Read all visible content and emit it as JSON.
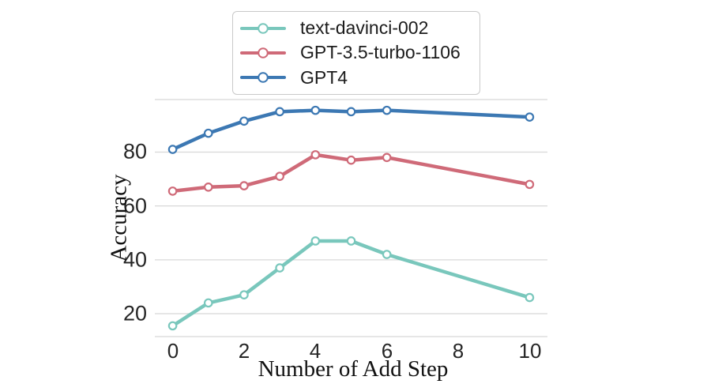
{
  "chart_data": {
    "type": "line",
    "title": "",
    "xlabel": "Number of Add Step",
    "ylabel": "Accuracy",
    "x": [
      0,
      1,
      2,
      3,
      4,
      5,
      6,
      10
    ],
    "series": [
      {
        "name": "text-davinci-002",
        "color": "#79c7bc",
        "values": [
          15.5,
          24,
          27,
          37,
          47,
          47,
          42,
          26
        ]
      },
      {
        "name": "GPT-3.5-turbo-1106",
        "color": "#cf6a78",
        "values": [
          65.5,
          67,
          67.5,
          71,
          79,
          77,
          78,
          68
        ]
      },
      {
        "name": "GPT4",
        "color": "#3c78b3",
        "values": [
          81,
          87,
          91.5,
          95,
          95.5,
          95,
          95.5,
          93
        ]
      }
    ],
    "xlim": [
      -0.5,
      10.5
    ],
    "ylim": [
      11.5,
      99.5
    ],
    "xticks": {
      "values": [
        0,
        2,
        4,
        6,
        8,
        10
      ],
      "labels": [
        "0",
        "2",
        "4",
        "6",
        "8",
        "10"
      ]
    },
    "yticks": {
      "values": [
        20,
        40,
        60,
        80
      ],
      "labels": [
        "20",
        "40",
        "60",
        "80"
      ]
    },
    "grid": "horizontal",
    "grid_color": "#d8d8d8",
    "marker": "circle-open",
    "legend": {
      "position": "upper center",
      "border_color": "#c9c9c9",
      "background": "#ffffff"
    }
  }
}
